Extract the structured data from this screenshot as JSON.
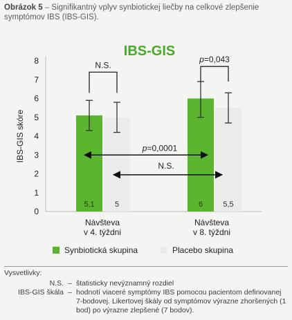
{
  "caption": {
    "label": "Obrázok 5",
    "text": " – Signifikantný vplyv synbiotickej liečby na celkové zlepšenie symptómov IBS (IBS-GIS)."
  },
  "chart_data": {
    "type": "bar",
    "title": "IBS-GIS",
    "ylabel": "IBS-GIS skóre",
    "ylim": [
      0,
      8
    ],
    "yticks": [
      "0",
      "1",
      "2",
      "3",
      "4",
      "5",
      "6",
      "7",
      "8"
    ],
    "categories": [
      [
        "Návšteva",
        "v 4. týždni"
      ],
      [
        "Návšteva",
        "v 8. týždni"
      ]
    ],
    "series": [
      {
        "name": "Synbiotická skupina",
        "color": "#5cb52f",
        "values": [
          5.1,
          6
        ],
        "value_labels": [
          "5,1",
          "6"
        ],
        "errors": [
          [
            4.3,
            5.9
          ],
          [
            5.0,
            6.9
          ]
        ]
      },
      {
        "name": "Placebo skupina",
        "color": "#ebebeb",
        "values": [
          5,
          5.5
        ],
        "value_labels": [
          "5",
          "5,5"
        ],
        "errors": [
          [
            4.2,
            5.8
          ],
          [
            4.7,
            6.3
          ]
        ]
      }
    ],
    "annotations": {
      "bracket1": "N.S.",
      "bracket2": "p=0,043",
      "arrow1": "p=0,0001",
      "arrow2": "N.S."
    },
    "legend_position": "bottom",
    "grid": false
  },
  "notes": {
    "title": "Vysvetlivky:",
    "items": [
      {
        "term": "N.S.",
        "sep": "–",
        "def": "štatisticky nevýznamný rozdiel"
      },
      {
        "term": "IBS-GIS škála",
        "sep": "–",
        "def": "hodnotí viaceré symptómy IBS pomocou pacientom definovanej 7-bodovej. Likertovej škály od symptómov výrazne zhoršených (1 bod) po výrazne zlepšené (7 bodov)."
      }
    ]
  }
}
